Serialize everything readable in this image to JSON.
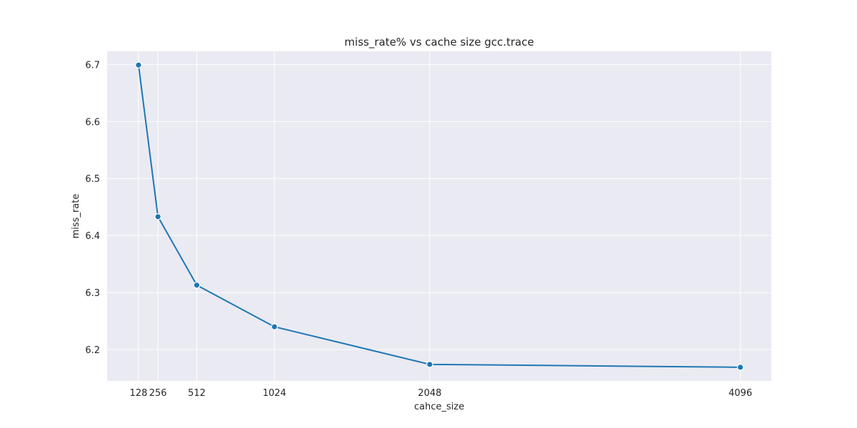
{
  "chart_data": {
    "type": "line",
    "title": "miss_rate% vs cache size gcc.trace",
    "xlabel": "cahce_size",
    "ylabel": "miss_rate",
    "x": [
      128,
      256,
      512,
      1024,
      2048,
      4096
    ],
    "series": [
      {
        "values": [
          6.699,
          6.433,
          6.313,
          6.24,
          6.174,
          6.169
        ]
      }
    ],
    "xticks": [
      128,
      256,
      512,
      1024,
      2048,
      4096
    ],
    "yticks": [
      6.2,
      6.3,
      6.4,
      6.5,
      6.6,
      6.7
    ],
    "xlim": [
      -79,
      4300
    ],
    "ylim": [
      6.145,
      6.723
    ],
    "grid": true,
    "colors": {
      "line": "#1f77b4",
      "background": "#eaeaf2",
      "grid": "#ffffff"
    }
  }
}
